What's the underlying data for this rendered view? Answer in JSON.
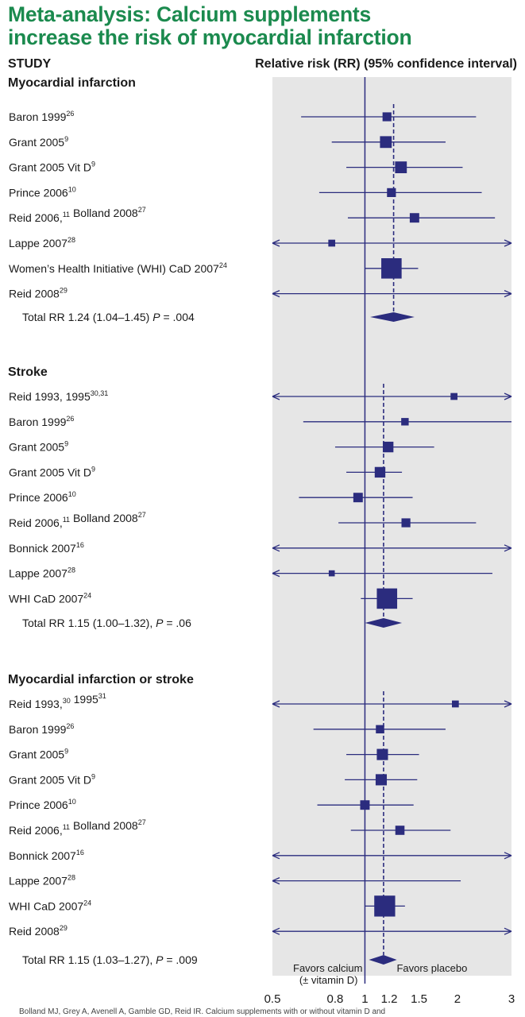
{
  "title_line1": "Meta-analysis: Calcium supplements",
  "title_line2": "increase the risk of myocardial infarction",
  "header_left": "STUDY",
  "header_right": "Relative risk (RR) (95% confidence interval)",
  "footer": "Bolland MJ, Grey A, Avenell A, Gamble GD, Reid IR. Calcium supplements with or without vitamin D and",
  "favors_left_line1": "Favors calcium",
  "favors_left_line2": "(± vitamin D)",
  "favors_right": "Favors placebo",
  "colors": {
    "title": "#1b8a4e",
    "marker": "#2b2c7e",
    "panel": "#e6e6e6"
  },
  "chart_data": {
    "type": "forest",
    "x_scale": "log",
    "xlim": [
      0.5,
      3
    ],
    "x_ticks": [
      0.5,
      0.8,
      1,
      1.2,
      1.5,
      2,
      3
    ],
    "reference_line": 1,
    "groups": [
      {
        "name": "Myocardial infarction",
        "pooled_rr": 1.24,
        "total": {
          "text": "Total RR 1.24 (1.04–1.45) ",
          "p_label": "P",
          "p_value": " = .004",
          "rr": 1.24,
          "lo": 1.04,
          "hi": 1.45
        },
        "studies": [
          {
            "label": "Baron 1999",
            "sup": "26",
            "rr": 1.18,
            "lo": 0.62,
            "hi": 2.3,
            "weight": 2
          },
          {
            "label": "Grant 2005",
            "sup": "9",
            "rr": 1.17,
            "lo": 0.78,
            "hi": 1.83,
            "weight": 3
          },
          {
            "label": "Grant 2005 Vit D",
            "sup": "9",
            "rr": 1.31,
            "lo": 0.87,
            "hi": 2.08,
            "weight": 3
          },
          {
            "label": "Prince 2006",
            "sup": "10",
            "rr": 1.22,
            "lo": 0.71,
            "hi": 2.4,
            "weight": 2
          },
          {
            "label": "Reid 2006,",
            "sup": "11",
            "label2": " Bolland 2008",
            "sup2": "27",
            "rr": 1.45,
            "lo": 0.88,
            "hi": 2.65,
            "weight": 2.2
          },
          {
            "label": "Lappe 2007",
            "sup": "28",
            "rr": 0.78,
            "lo": 0.5,
            "hi": 3,
            "weight": 1.3,
            "arrow_left": true,
            "arrow_right": true
          },
          {
            "label": "Women’s Health Initiative (WHI) CaD 2007",
            "sup": "24",
            "rr": 1.22,
            "lo": 1.0,
            "hi": 1.49,
            "weight": 6
          },
          {
            "label": "Reid 2008",
            "sup": "29",
            "rr": null,
            "lo": 0.5,
            "hi": 3,
            "weight": 0,
            "arrow_left": true,
            "arrow_right": true
          }
        ]
      },
      {
        "name": "Stroke",
        "pooled_rr": 1.15,
        "total": {
          "text": "Total RR 1.15 (1.00–1.32), ",
          "p_label": "P",
          "p_value": " = .06",
          "rr": 1.15,
          "lo": 1.0,
          "hi": 1.32
        },
        "studies": [
          {
            "label": "Reid 1993, 1995",
            "sup": "30,31",
            "rr": 1.95,
            "lo": 0.5,
            "hi": 3,
            "weight": 1.3,
            "arrow_left": true,
            "arrow_right": true
          },
          {
            "label": "Baron 1999",
            "sup": "26",
            "rr": 1.35,
            "lo": 0.63,
            "hi": 3,
            "weight": 1.5
          },
          {
            "label": "Grant 2005",
            "sup": "9",
            "rr": 1.19,
            "lo": 0.8,
            "hi": 1.68,
            "weight": 2.6
          },
          {
            "label": "Grant 2005 Vit D",
            "sup": "9",
            "rr": 1.12,
            "lo": 0.87,
            "hi": 1.32,
            "weight": 2.6
          },
          {
            "label": "Prince 2006",
            "sup": "10",
            "rr": 0.95,
            "lo": 0.61,
            "hi": 1.43,
            "weight": 2.2
          },
          {
            "label": "Reid 2006,",
            "sup": "11",
            "label2": " Bolland 2008",
            "sup2": "27",
            "rr": 1.36,
            "lo": 0.82,
            "hi": 2.3,
            "weight": 2
          },
          {
            "label": "Bonnick 2007",
            "sup": "16",
            "rr": null,
            "lo": 0.5,
            "hi": 3,
            "weight": 0,
            "arrow_left": true,
            "arrow_right": true
          },
          {
            "label": "Lappe 2007",
            "sup": "28",
            "rr": 0.78,
            "lo": 0.5,
            "hi": 2.6,
            "weight": 1,
            "arrow_left": true
          },
          {
            "label": "WHI CaD 2007",
            "sup": "24",
            "rr": 1.18,
            "lo": 0.97,
            "hi": 1.43,
            "weight": 6
          }
        ]
      },
      {
        "name": "Myocardial infarction or stroke",
        "pooled_rr": 1.15,
        "total": {
          "text": "Total RR 1.15 (1.03–1.27), ",
          "p_label": "P",
          "p_value": " = .009",
          "rr": 1.15,
          "lo": 1.03,
          "hi": 1.27
        },
        "studies": [
          {
            "label": "Reid 1993,",
            "sup": "30",
            "label2": " 1995",
            "sup2": "31",
            "rr": 1.97,
            "lo": 0.5,
            "hi": 3,
            "weight": 1.3,
            "arrow_left": true,
            "arrow_right": true
          },
          {
            "label": "Baron 1999",
            "sup": "26",
            "rr": 1.12,
            "lo": 0.68,
            "hi": 1.83,
            "weight": 1.8
          },
          {
            "label": "Grant 2005",
            "sup": "9",
            "rr": 1.14,
            "lo": 0.87,
            "hi": 1.5,
            "weight": 2.8
          },
          {
            "label": "Grant 2005 Vit D",
            "sup": "9",
            "rr": 1.13,
            "lo": 0.86,
            "hi": 1.48,
            "weight": 2.8
          },
          {
            "label": "Prince 2006",
            "sup": "10",
            "rr": 1.0,
            "lo": 0.7,
            "hi": 1.44,
            "weight": 2.2
          },
          {
            "label": "Reid 2006,",
            "sup": "11",
            "label2": " Bolland 2008",
            "sup2": "27",
            "rr": 1.3,
            "lo": 0.9,
            "hi": 1.9,
            "weight": 2.1
          },
          {
            "label": "Bonnick 2007",
            "sup": "16",
            "rr": null,
            "lo": 0.5,
            "hi": 3,
            "weight": 0,
            "arrow_left": true,
            "arrow_right": true
          },
          {
            "label": "Lappe 2007",
            "sup": "28",
            "rr": null,
            "lo": 0.5,
            "hi": 2.05,
            "weight": 0,
            "arrow_left": true
          },
          {
            "label": "WHI CaD 2007",
            "sup": "24",
            "rr": 1.16,
            "lo": 1.0,
            "hi": 1.35,
            "weight": 6.2
          },
          {
            "label": "Reid 2008",
            "sup": "29",
            "rr": null,
            "lo": 0.5,
            "hi": 3,
            "weight": 0,
            "arrow_left": true,
            "arrow_right": true
          }
        ]
      }
    ]
  }
}
